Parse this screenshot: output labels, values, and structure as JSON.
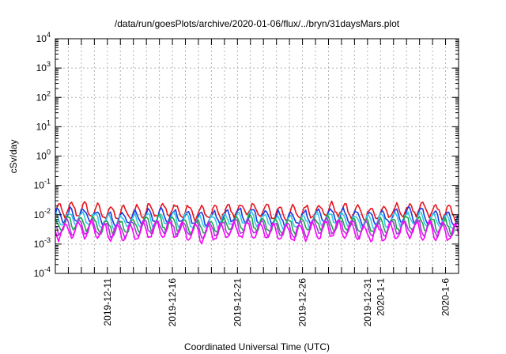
{
  "chart_data": {
    "type": "line",
    "title": "/data/run/goesPlots/archive/2020-01-06/flux/../bryn/31daysMars.plot",
    "xlabel": "Coordinated Universal Time (UTC)",
    "ylabel": "cSv/day",
    "yscale": "log",
    "ylim": [
      0.0001,
      10000
    ],
    "xlim": [
      "2019-12-07",
      "2020-01-07"
    ],
    "grid": true,
    "y_ticks": [
      {
        "base": "10",
        "exp": "4"
      },
      {
        "base": "10",
        "exp": "3"
      },
      {
        "base": "10",
        "exp": "2"
      },
      {
        "base": "10",
        "exp": "1"
      },
      {
        "base": "10",
        "exp": "0"
      },
      {
        "base": "10",
        "exp": "-1"
      },
      {
        "base": "10",
        "exp": "-2"
      },
      {
        "base": "10",
        "exp": "-3"
      },
      {
        "base": "10",
        "exp": "-4"
      }
    ],
    "x_ticks": [
      "2019-12-11",
      "2019-12-16",
      "2019-12-21",
      "2019-12-26",
      "2019-12-31",
      "2020-1-1",
      "2020-1-6"
    ],
    "series": [
      {
        "color": "#e8141c",
        "baseline": 0.013,
        "amplitude": 0.22,
        "phase": 0.0
      },
      {
        "color": "#1a3ce6",
        "baseline": 0.0085,
        "amplitude": 0.22,
        "phase": 0.1
      },
      {
        "color": "#30c8e8",
        "baseline": 0.0065,
        "amplitude": 0.22,
        "phase": 0.2
      },
      {
        "color": "#1aa84a",
        "baseline": 0.0045,
        "amplitude": 0.24,
        "phase": 0.3
      },
      {
        "color": "#a040d0",
        "baseline": 0.0034,
        "amplitude": 0.26,
        "phase": 0.4
      },
      {
        "color": "#ff00ff",
        "baseline": 0.0027,
        "amplitude": 0.28,
        "phase": 0.5
      }
    ]
  }
}
